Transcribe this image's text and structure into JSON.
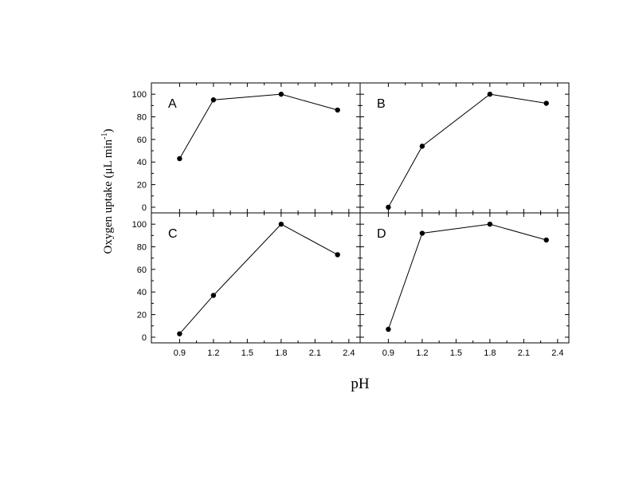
{
  "chart_data": [
    {
      "type": "line",
      "panel_label": "A",
      "x": [
        0.9,
        1.2,
        1.8,
        2.3
      ],
      "values": [
        43,
        95,
        100,
        86
      ],
      "xlim": [
        0.65,
        2.5
      ],
      "ylim": [
        -5,
        110
      ],
      "xticks": [
        "0.9",
        "1.2",
        "1.5",
        "1.8",
        "2.1",
        "2.4"
      ],
      "yticks": [
        "0",
        "20",
        "40",
        "60",
        "80",
        "100"
      ]
    },
    {
      "type": "line",
      "panel_label": "B",
      "x": [
        0.9,
        1.2,
        1.8,
        2.3
      ],
      "values": [
        0,
        54,
        100,
        92
      ],
      "xlim": [
        0.65,
        2.5
      ],
      "ylim": [
        -5,
        110
      ],
      "xticks": [
        "0.9",
        "1.2",
        "1.5",
        "1.8",
        "2.1",
        "2.4"
      ],
      "yticks": []
    },
    {
      "type": "line",
      "panel_label": "C",
      "x": [
        0.9,
        1.2,
        1.8,
        2.3
      ],
      "values": [
        3,
        37,
        100,
        73
      ],
      "xlim": [
        0.65,
        2.5
      ],
      "ylim": [
        -5,
        110
      ],
      "xticks": [
        "0.9",
        "1.2",
        "1.5",
        "1.8",
        "2.1",
        "2.4"
      ],
      "yticks": [
        "0",
        "20",
        "40",
        "60",
        "80",
        "100"
      ]
    },
    {
      "type": "line",
      "panel_label": "D",
      "x": [
        0.9,
        1.2,
        1.8,
        2.3
      ],
      "values": [
        7,
        92,
        100,
        86
      ],
      "xlim": [
        0.65,
        2.5
      ],
      "ylim": [
        -5,
        110
      ],
      "xticks": [
        "0.9",
        "1.2",
        "1.5",
        "1.8",
        "2.1",
        "2.4"
      ],
      "yticks": []
    }
  ],
  "xlabel": "pH",
  "ylabel": {
    "main": "Oxygen  uptake (μL min",
    "superscript": "-1",
    "closing": ")"
  }
}
